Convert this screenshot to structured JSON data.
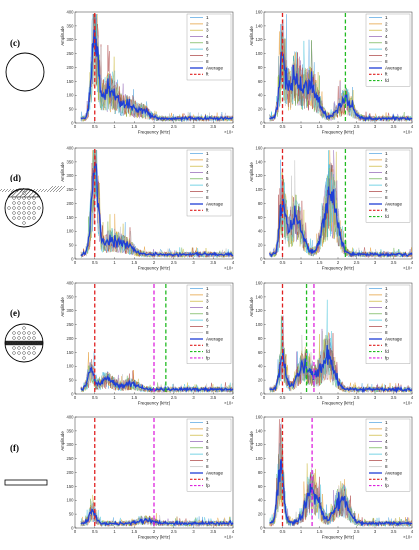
{
  "colors": {
    "series": [
      "#4fa3e0",
      "#e3962a",
      "#c9b533",
      "#8e5fb4",
      "#6ab04c",
      "#3fc1d9",
      "#a83a3a",
      "#bdbdbd"
    ],
    "average": "#1f3fd6",
    "ft": "#e02020",
    "fd": "#22bb22",
    "fp": "#dd22dd"
  },
  "row_labels": [
    "(c)",
    "(d)",
    "(e)",
    "(f)"
  ],
  "icons": [
    "circle-section-icon",
    "disc-hatched-holes-icon",
    "disc-band-holes-icon",
    "flat-bar-icon"
  ],
  "xlabel": "Frequency (kHz)",
  "ylabel": "Amplitude",
  "x_exponent": "×10⁴",
  "chart_data": [
    {
      "type": "line",
      "row": "(c)",
      "col": 1,
      "xlim": [
        0,
        4
      ],
      "ylim": [
        0,
        400
      ],
      "xticks": [
        "0",
        "0.5",
        "1",
        "1.5",
        "2",
        "2.5",
        "3",
        "3.5",
        "4"
      ],
      "yticks": [
        "0",
        "50",
        "100",
        "150",
        "200",
        "250",
        "300",
        "350",
        "400"
      ],
      "series": [
        "1",
        "2",
        "3",
        "4",
        "5",
        "6",
        "7",
        "8",
        "Average"
      ],
      "markers": [
        {
          "name": "ft",
          "x": 0.5
        }
      ],
      "peaks": [
        [
          0.5,
          300
        ],
        [
          0.85,
          95
        ],
        [
          1.3,
          40
        ],
        [
          1.7,
          25
        ]
      ]
    },
    {
      "type": "line",
      "row": "(c)",
      "col": 2,
      "xlim": [
        0,
        4
      ],
      "ylim": [
        0,
        160
      ],
      "xticks": [
        "0",
        "0.5",
        "1",
        "1.5",
        "2",
        "2.5",
        "3",
        "3.5",
        "4"
      ],
      "yticks": [
        "0",
        "20",
        "40",
        "60",
        "80",
        "100",
        "120",
        "140",
        "160"
      ],
      "series": [
        "1",
        "2",
        "3",
        "4",
        "5",
        "6",
        "7",
        "8",
        "Average"
      ],
      "markers": [
        {
          "name": "ft",
          "x": 0.5
        },
        {
          "name": "fd",
          "x": 2.2
        }
      ],
      "peaks": [
        [
          0.5,
          80
        ],
        [
          0.85,
          55
        ],
        [
          1.3,
          40
        ],
        [
          2.2,
          25
        ]
      ]
    },
    {
      "type": "line",
      "row": "(d)",
      "col": 1,
      "xlim": [
        0,
        4
      ],
      "ylim": [
        0,
        400
      ],
      "xticks": [
        "0",
        "0.5",
        "1",
        "1.5",
        "2",
        "2.5",
        "3",
        "3.5",
        "4"
      ],
      "yticks": [
        "0",
        "50",
        "100",
        "150",
        "200",
        "250",
        "300",
        "350",
        "400"
      ],
      "series": [
        "1",
        "2",
        "3",
        "4",
        "5",
        "6",
        "7",
        "8",
        "Average"
      ],
      "markers": [
        {
          "name": "ft",
          "x": 0.5
        }
      ],
      "peaks": [
        [
          0.5,
          330
        ],
        [
          0.9,
          50
        ],
        [
          1.3,
          30
        ]
      ]
    },
    {
      "type": "line",
      "row": "(d)",
      "col": 2,
      "xlim": [
        0,
        4
      ],
      "ylim": [
        0,
        160
      ],
      "xticks": [
        "0",
        "0.5",
        "1",
        "1.5",
        "2",
        "2.5",
        "3",
        "3.5",
        "4"
      ],
      "yticks": [
        "0",
        "20",
        "40",
        "60",
        "80",
        "100",
        "120",
        "140",
        "160"
      ],
      "series": [
        "1",
        "2",
        "3",
        "4",
        "5",
        "6",
        "7",
        "8",
        "Average"
      ],
      "markers": [
        {
          "name": "ft",
          "x": 0.5
        },
        {
          "name": "fd",
          "x": 2.2
        }
      ],
      "peaks": [
        [
          0.5,
          65
        ],
        [
          0.85,
          50
        ],
        [
          1.8,
          80
        ]
      ]
    },
    {
      "type": "line",
      "row": "(e)",
      "col": 1,
      "xlim": [
        0,
        4
      ],
      "ylim": [
        0,
        400
      ],
      "xticks": [
        "0",
        "0.5",
        "1",
        "1.5",
        "2",
        "2.5",
        "3",
        "3.5",
        "4"
      ],
      "yticks": [
        "0",
        "50",
        "100",
        "150",
        "200",
        "250",
        "300",
        "350",
        "400"
      ],
      "series": [
        "1",
        "2",
        "3",
        "4",
        "5",
        "6",
        "7",
        "8",
        "Average"
      ],
      "markers": [
        {
          "name": "ft",
          "x": 0.5
        },
        {
          "name": "fd",
          "x": 2.3
        },
        {
          "name": "fp",
          "x": 2.0
        }
      ],
      "peaks": [
        [
          0.4,
          60
        ],
        [
          0.8,
          35
        ],
        [
          1.4,
          20
        ]
      ]
    },
    {
      "type": "line",
      "row": "(e)",
      "col": 2,
      "xlim": [
        0,
        4
      ],
      "ylim": [
        0,
        160
      ],
      "xticks": [
        "0",
        "0.5",
        "1",
        "1.5",
        "2",
        "2.5",
        "3",
        "3.5",
        "4"
      ],
      "yticks": [
        "0",
        "20",
        "40",
        "60",
        "80",
        "100",
        "120",
        "140",
        "160"
      ],
      "series": [
        "1",
        "2",
        "3",
        "4",
        "5",
        "6",
        "7",
        "8",
        "Average"
      ],
      "markers": [
        {
          "name": "ft",
          "x": 0.5
        },
        {
          "name": "fd",
          "x": 1.15
        },
        {
          "name": "fp",
          "x": 1.35
        }
      ],
      "peaks": [
        [
          0.5,
          45
        ],
        [
          1.1,
          35
        ],
        [
          1.7,
          45
        ]
      ]
    },
    {
      "type": "line",
      "row": "(f)",
      "col": 1,
      "xlim": [
        0,
        4
      ],
      "ylim": [
        0,
        400
      ],
      "xticks": [
        "0",
        "0.5",
        "1",
        "1.5",
        "2",
        "2.5",
        "3",
        "3.5",
        "4"
      ],
      "yticks": [
        "0",
        "50",
        "100",
        "150",
        "200",
        "250",
        "300",
        "350",
        "400"
      ],
      "series": [
        "1",
        "2",
        "3",
        "4",
        "5",
        "6",
        "7",
        "8",
        "Average"
      ],
      "markers": [
        {
          "name": "ft",
          "x": 0.5
        },
        {
          "name": "fp",
          "x": 2.0
        }
      ],
      "peaks": [
        [
          0.45,
          45
        ],
        [
          1.8,
          12
        ]
      ]
    },
    {
      "type": "line",
      "row": "(f)",
      "col": 2,
      "xlim": [
        0,
        4
      ],
      "ylim": [
        0,
        160
      ],
      "xticks": [
        "0",
        "0.5",
        "1",
        "1.5",
        "2",
        "2.5",
        "3",
        "3.5",
        "4"
      ],
      "yticks": [
        "0",
        "20",
        "40",
        "60",
        "80",
        "100",
        "120",
        "140",
        "160"
      ],
      "series": [
        "1",
        "2",
        "3",
        "4",
        "5",
        "6",
        "7",
        "8",
        "Average"
      ],
      "markers": [
        {
          "name": "ft",
          "x": 0.5
        },
        {
          "name": "fp",
          "x": 1.3
        }
      ],
      "peaks": [
        [
          0.45,
          85
        ],
        [
          1.3,
          45
        ],
        [
          2.1,
          35
        ]
      ]
    }
  ]
}
